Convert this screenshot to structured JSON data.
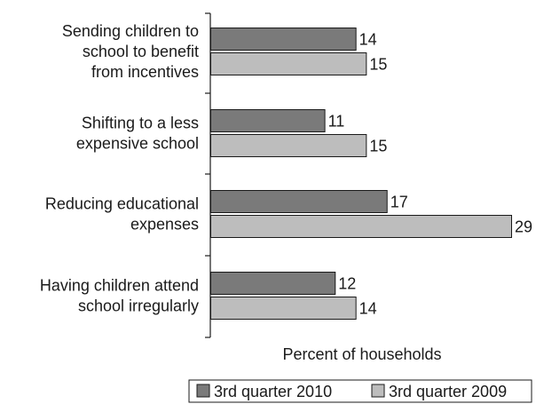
{
  "chart_data": {
    "type": "bar",
    "orientation": "horizontal",
    "categories": [
      [
        "Sending children to",
        "school to benefit",
        "from incentives"
      ],
      [
        "Shifting to a less",
        "expensive school"
      ],
      [
        "Reducing educational",
        "expenses"
      ],
      [
        "Having children attend",
        "school irregularly"
      ]
    ],
    "series": [
      {
        "name": "3rd quarter 2010",
        "values": [
          14,
          11,
          17,
          12
        ],
        "color": "#7a7a7a"
      },
      {
        "name": "3rd quarter 2009",
        "values": [
          15,
          15,
          29,
          14
        ],
        "color": "#bdbdbd"
      }
    ],
    "xlabel": "Percent of households",
    "xlim": [
      0,
      29
    ],
    "grid": false,
    "data_labels": true,
    "legend_position": "bottom-right"
  }
}
